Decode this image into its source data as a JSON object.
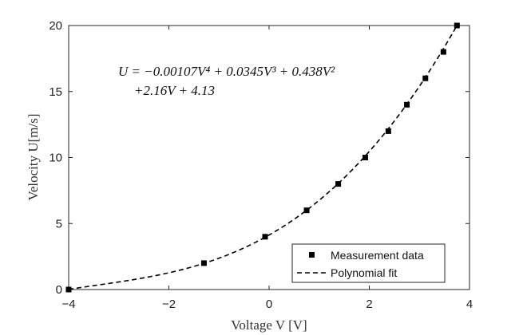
{
  "chart_data": {
    "type": "scatter",
    "xlabel": "Voltage V [V]",
    "ylabel": "Velocity U[m/s]",
    "xlim": [
      -4,
      4
    ],
    "ylim": [
      0,
      20
    ],
    "xticks": [
      -4,
      -2,
      0,
      2,
      4
    ],
    "yticks": [
      0,
      5,
      10,
      15,
      20
    ],
    "grid": false,
    "legend_position": "bottom-right",
    "annotation": {
      "line1": "U = −0.00107V⁴ + 0.0345V³ + 0.438V²",
      "line2": "+2.16V + 4.13"
    },
    "fit": {
      "coefficients": [
        -0.00107,
        0.0345,
        0.438,
        2.16,
        4.13
      ],
      "x_range": [
        -4,
        3.75
      ]
    },
    "series": [
      {
        "name": "Measurement data",
        "style": "square-marker",
        "x": [
          -4.0,
          -1.3,
          -0.08,
          0.75,
          1.38,
          1.92,
          2.38,
          2.75,
          3.12,
          3.48,
          3.75
        ],
        "y": [
          0,
          2,
          4,
          6,
          8,
          10,
          12,
          14,
          16,
          18,
          20
        ]
      },
      {
        "name": "Polynomial fit",
        "style": "dashed-line"
      }
    ]
  }
}
